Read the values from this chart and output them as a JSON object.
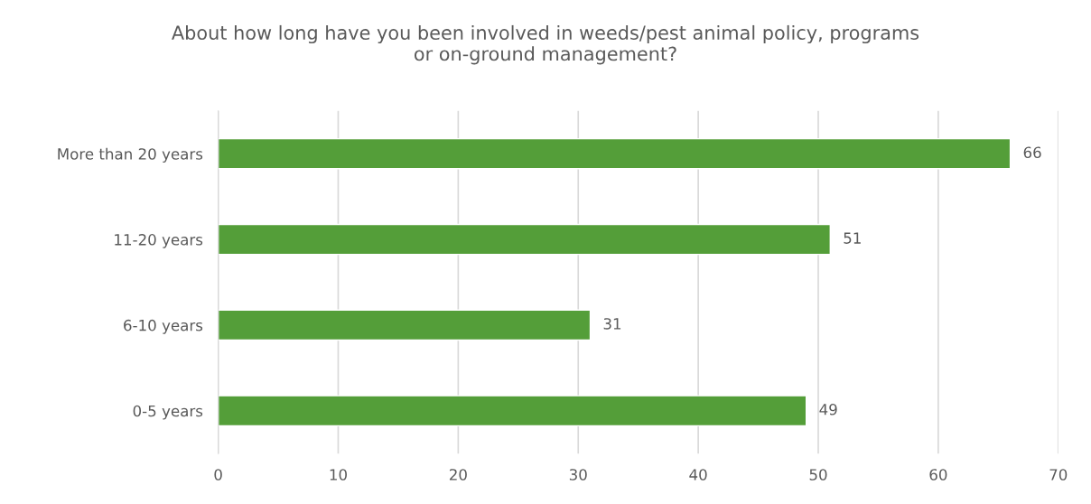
{
  "chart_data": {
    "type": "bar",
    "orientation": "horizontal",
    "title": "About how long have you been involved in weeds/pest animal policy, programs\nor on-ground management?",
    "categories": [
      "More than 20 years",
      "11-20 years",
      "6-10 years",
      "0-5 years"
    ],
    "values": [
      66,
      51,
      31,
      49
    ],
    "color": "#549e39",
    "xlim": [
      0,
      70
    ],
    "xticks": [
      0,
      10,
      20,
      30,
      40,
      50,
      60,
      70
    ],
    "grid": "x",
    "data_labels": true
  }
}
